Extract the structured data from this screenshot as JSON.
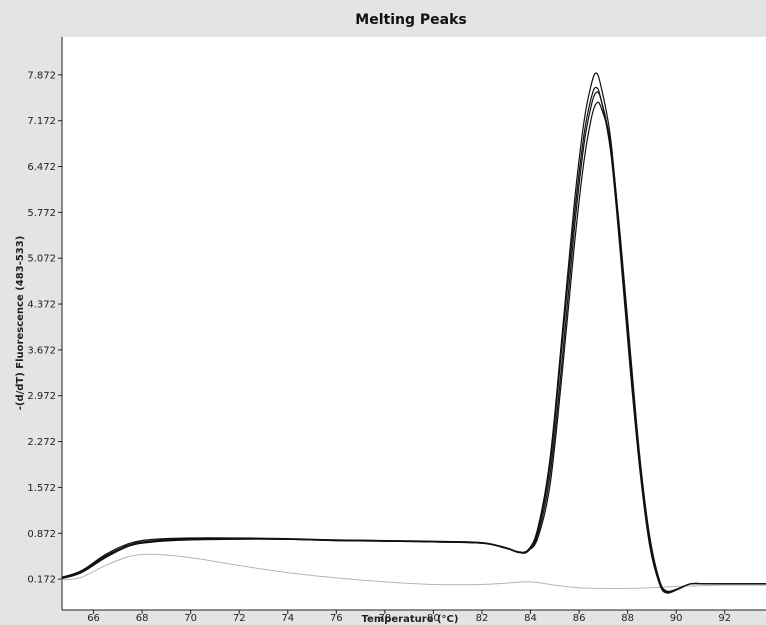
{
  "chart_data": {
    "type": "line",
    "title": "Melting Peaks",
    "xlabel": "Temperature (°C)",
    "ylabel": "-(d/dT) Fluorescence (483-533)",
    "xlim": [
      64.7,
      93.7
    ],
    "ylim": [
      -0.3,
      8.45
    ],
    "xticks": [
      66,
      68,
      70,
      72,
      74,
      76,
      78,
      80,
      82,
      84,
      86,
      88,
      90,
      92
    ],
    "yticks": [
      "0.172",
      "0.872",
      "1.572",
      "2.272",
      "2.972",
      "3.672",
      "4.372",
      "5.072",
      "5.772",
      "6.472",
      "7.172",
      "7.872"
    ],
    "grid": false,
    "legend": "none",
    "colors": {
      "background": "#e4e4e4",
      "plot_area": "#ffffff",
      "curve": "#111111",
      "baseline_curve": "#b5b5b5"
    },
    "series": [
      {
        "color": "#111111",
        "x": [
          64.7,
          65.5,
          66.5,
          67.5,
          68.5,
          70,
          72,
          74,
          76,
          78,
          80,
          82,
          83,
          83.5,
          83.9,
          84.3,
          84.8,
          85.3,
          85.8,
          86.2,
          86.5,
          86.7,
          86.9,
          87.3,
          87.7,
          88.1,
          88.5,
          88.9,
          89.3,
          89.6,
          90.1,
          90.6,
          91.2,
          92,
          93,
          93.7
        ],
        "y": [
          0.2,
          0.3,
          0.55,
          0.72,
          0.78,
          0.8,
          0.8,
          0.79,
          0.77,
          0.76,
          0.75,
          0.73,
          0.65,
          0.59,
          0.62,
          0.95,
          2.0,
          3.9,
          5.9,
          7.15,
          7.72,
          7.9,
          7.7,
          6.9,
          5.3,
          3.5,
          1.9,
          0.75,
          0.13,
          -0.03,
          0.03,
          0.1,
          0.1,
          0.1,
          0.1,
          0.1
        ]
      },
      {
        "color": "#111111",
        "x": [
          64.7,
          65.5,
          66.5,
          67.5,
          68.5,
          70,
          72,
          74,
          76,
          78,
          80,
          82,
          83,
          83.5,
          83.9,
          84.3,
          84.8,
          85.3,
          85.8,
          86.2,
          86.5,
          86.7,
          86.9,
          87.3,
          87.7,
          88.1,
          88.5,
          88.9,
          89.3,
          89.6,
          90.1,
          90.6,
          91.2,
          92,
          93,
          93.7
        ],
        "y": [
          0.18,
          0.27,
          0.5,
          0.68,
          0.74,
          0.77,
          0.78,
          0.78,
          0.76,
          0.75,
          0.74,
          0.72,
          0.64,
          0.58,
          0.6,
          0.9,
          1.9,
          3.75,
          5.7,
          6.95,
          7.52,
          7.68,
          7.5,
          6.7,
          5.15,
          3.4,
          1.85,
          0.7,
          0.11,
          -0.04,
          0.02,
          0.1,
          0.1,
          0.1,
          0.1,
          0.1
        ]
      },
      {
        "color": "#111111",
        "x": [
          64.7,
          65.5,
          66.5,
          67.5,
          68.5,
          70,
          72,
          74,
          76,
          78,
          80,
          82,
          83,
          83.5,
          83.9,
          84.3,
          84.8,
          85.3,
          85.8,
          86.2,
          86.5,
          86.7,
          86.9,
          87.3,
          87.7,
          88.1,
          88.5,
          88.9,
          89.3,
          89.6,
          90.1,
          90.6,
          91.2,
          92,
          93,
          93.7
        ],
        "y": [
          0.19,
          0.28,
          0.52,
          0.7,
          0.76,
          0.79,
          0.79,
          0.78,
          0.77,
          0.76,
          0.74,
          0.72,
          0.64,
          0.58,
          0.6,
          0.85,
          1.75,
          3.5,
          5.5,
          6.8,
          7.4,
          7.6,
          7.5,
          6.8,
          5.3,
          3.55,
          1.95,
          0.8,
          0.15,
          -0.02,
          0.03,
          0.1,
          0.1,
          0.1,
          0.1,
          0.1
        ]
      },
      {
        "color": "#111111",
        "x": [
          64.7,
          65.5,
          66.5,
          67.5,
          68.5,
          70,
          72,
          74,
          76,
          78,
          80,
          82,
          83,
          83.5,
          83.9,
          84.3,
          84.8,
          85.3,
          85.8,
          86.2,
          86.5,
          86.7,
          86.9,
          87.3,
          87.7,
          88.1,
          88.5,
          88.9,
          89.3,
          89.6,
          90.1,
          90.6,
          91.2,
          92,
          93,
          93.7
        ],
        "y": [
          0.2,
          0.29,
          0.53,
          0.69,
          0.75,
          0.78,
          0.79,
          0.78,
          0.76,
          0.75,
          0.74,
          0.72,
          0.65,
          0.58,
          0.61,
          0.8,
          1.6,
          3.3,
          5.25,
          6.55,
          7.2,
          7.43,
          7.38,
          6.8,
          5.4,
          3.7,
          2.05,
          0.85,
          0.17,
          -0.01,
          0.03,
          0.1,
          0.1,
          0.1,
          0.1,
          0.1
        ]
      },
      {
        "color": "#b5b5b5",
        "x": [
          64.7,
          65.5,
          66.5,
          67.5,
          68.5,
          70,
          72,
          74,
          76,
          78,
          80,
          82,
          83,
          84,
          85,
          86,
          87,
          88,
          89,
          90,
          91,
          92,
          93,
          93.7
        ],
        "y": [
          0.16,
          0.2,
          0.38,
          0.52,
          0.55,
          0.5,
          0.38,
          0.27,
          0.19,
          0.13,
          0.09,
          0.09,
          0.11,
          0.13,
          0.08,
          0.04,
          0.03,
          0.03,
          0.04,
          0.06,
          0.07,
          0.08,
          0.08,
          0.08
        ]
      }
    ]
  }
}
